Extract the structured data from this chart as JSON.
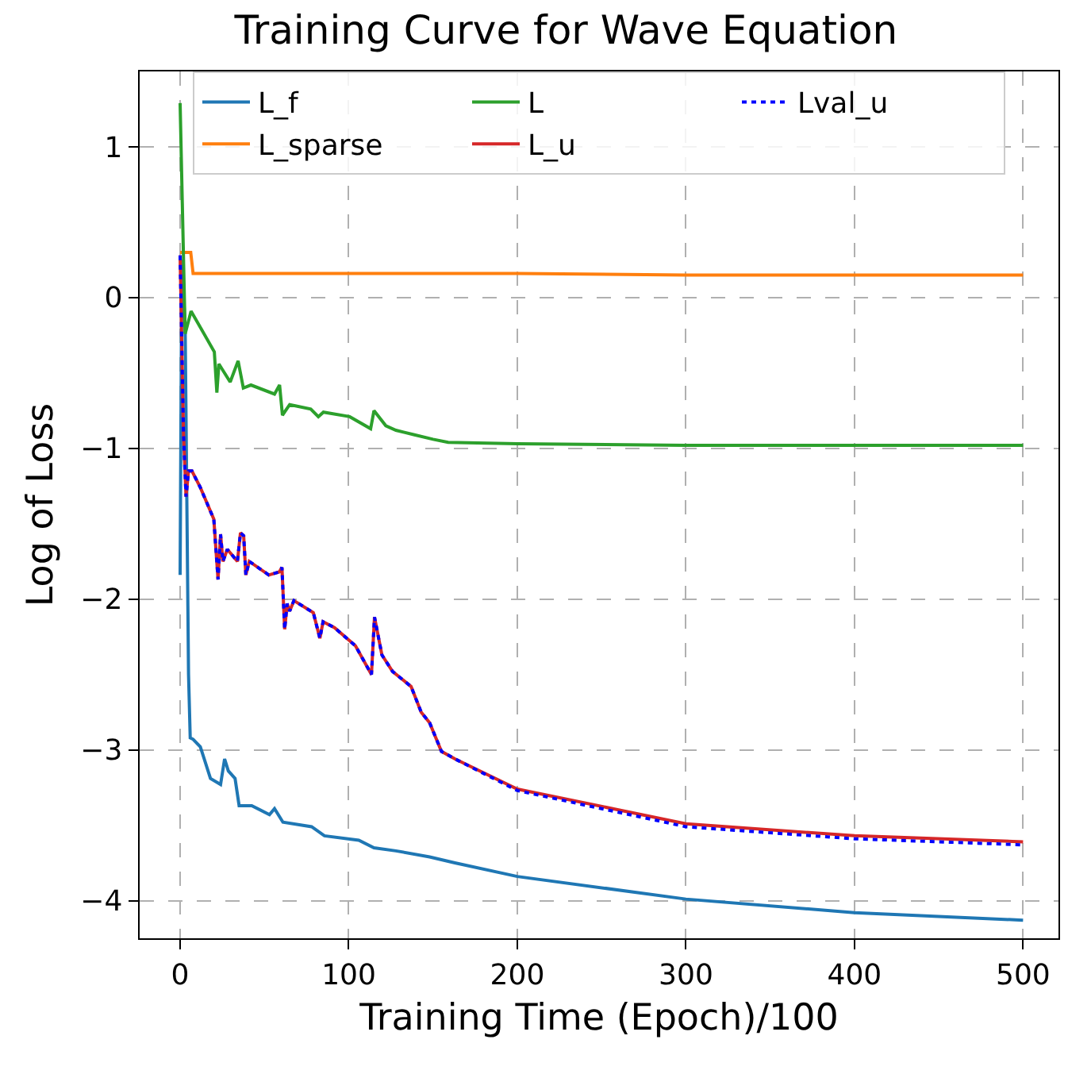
{
  "chart_data": {
    "type": "line",
    "title": "Training Curve for Wave Equation",
    "xlabel": "Training Time (Epoch)/100",
    "ylabel": "Log of Loss",
    "xlim": [
      -24,
      521
    ],
    "ylim": [
      -4.25,
      1.5
    ],
    "xticks": [
      0,
      100,
      200,
      300,
      400,
      500
    ],
    "yticks": [
      -4,
      -3,
      -2,
      -1,
      0,
      1
    ],
    "grid": true,
    "legend": "top",
    "line_style": "solid",
    "marker": "none",
    "series": [
      {
        "name": "L_f",
        "color": "#1f77b4",
        "x": [
          0,
          1,
          3,
          5,
          6,
          7.7,
          12,
          18,
          24,
          26.4,
          28.6,
          32.6,
          35,
          42.5,
          53,
          56,
          61,
          78,
          85.6,
          106,
          115,
          128,
          148,
          163,
          200,
          300,
          400,
          500
        ],
        "values": [
          -1.84,
          0.25,
          -0.2,
          -2.5,
          -2.92,
          -2.93,
          -2.98,
          -3.19,
          -3.23,
          -3.06,
          -3.14,
          -3.19,
          -3.37,
          -3.37,
          -3.43,
          -3.39,
          -3.48,
          -3.51,
          -3.57,
          -3.6,
          -3.65,
          -3.67,
          -3.71,
          -3.75,
          -3.84,
          -3.99,
          -4.08,
          -4.13
        ]
      },
      {
        "name": "L_sparse",
        "color": "#ff7f0e",
        "x": [
          0,
          6.3,
          7.7,
          100,
          200,
          300,
          400,
          500
        ],
        "values": [
          0.3,
          0.3,
          0.16,
          0.16,
          0.16,
          0.15,
          0.15,
          0.15
        ]
      },
      {
        "name": "L",
        "color": "#2ca02c",
        "x": [
          0,
          3,
          6.5,
          20.3,
          21.8,
          23,
          29.7,
          34.4,
          37.5,
          42,
          56,
          59,
          60.7,
          65,
          77.5,
          82,
          85,
          100.6,
          113,
          115,
          122,
          128,
          139,
          150,
          159,
          200,
          300,
          400,
          500
        ],
        "values": [
          1.29,
          -0.24,
          -0.09,
          -0.36,
          -0.63,
          -0.44,
          -0.56,
          -0.42,
          -0.6,
          -0.58,
          -0.64,
          -0.58,
          -0.78,
          -0.71,
          -0.74,
          -0.79,
          -0.76,
          -0.79,
          -0.87,
          -0.75,
          -0.85,
          -0.88,
          -0.91,
          -0.94,
          -0.96,
          -0.97,
          -0.98,
          -0.98,
          -0.98
        ]
      },
      {
        "name": "L_u",
        "color": "#d62728",
        "x": [
          0,
          2,
          3.5,
          5,
          7,
          12,
          20,
          22.5,
          24,
          25.4,
          28,
          34,
          35.8,
          37.7,
          39,
          41,
          52.6,
          58.8,
          60.4,
          62,
          63.5,
          65,
          67.5,
          79,
          82.9,
          84.8,
          91.6,
          104,
          113.5,
          115.3,
          119.7,
          126,
          137,
          143,
          148,
          155,
          163,
          200,
          300,
          400,
          500
        ],
        "values": [
          0.28,
          -0.9,
          -1.32,
          -1.15,
          -1.15,
          -1.26,
          -1.47,
          -1.87,
          -1.57,
          -1.75,
          -1.67,
          -1.75,
          -1.56,
          -1.58,
          -1.84,
          -1.75,
          -1.84,
          -1.82,
          -1.79,
          -2.2,
          -2.03,
          -2.08,
          -2.01,
          -2.09,
          -2.26,
          -2.15,
          -2.19,
          -2.31,
          -2.5,
          -2.12,
          -2.37,
          -2.48,
          -2.58,
          -2.75,
          -2.82,
          -3.01,
          -3.06,
          -3.26,
          -3.49,
          -3.57,
          -3.61
        ]
      },
      {
        "name": "Lval_u",
        "color": "#0000ff",
        "line_style": "dotted",
        "x": [
          0,
          2,
          3.5,
          5,
          7,
          12,
          20,
          22.5,
          24,
          25.4,
          28,
          34,
          35.8,
          37.7,
          39,
          41,
          52.6,
          58.8,
          60.4,
          62,
          63.5,
          65,
          67.5,
          79,
          82.9,
          84.8,
          91.6,
          104,
          113.5,
          115.3,
          119.7,
          126,
          137,
          143,
          148,
          155,
          163,
          200,
          300,
          400,
          500
        ],
        "values": [
          0.28,
          -0.9,
          -1.32,
          -1.15,
          -1.15,
          -1.26,
          -1.47,
          -1.87,
          -1.57,
          -1.75,
          -1.67,
          -1.75,
          -1.56,
          -1.58,
          -1.84,
          -1.75,
          -1.84,
          -1.82,
          -1.79,
          -2.2,
          -2.03,
          -2.08,
          -2.01,
          -2.09,
          -2.26,
          -2.15,
          -2.19,
          -2.31,
          -2.5,
          -2.12,
          -2.37,
          -2.48,
          -2.58,
          -2.75,
          -2.82,
          -3.01,
          -3.06,
          -3.27,
          -3.51,
          -3.59,
          -3.63
        ]
      }
    ]
  }
}
